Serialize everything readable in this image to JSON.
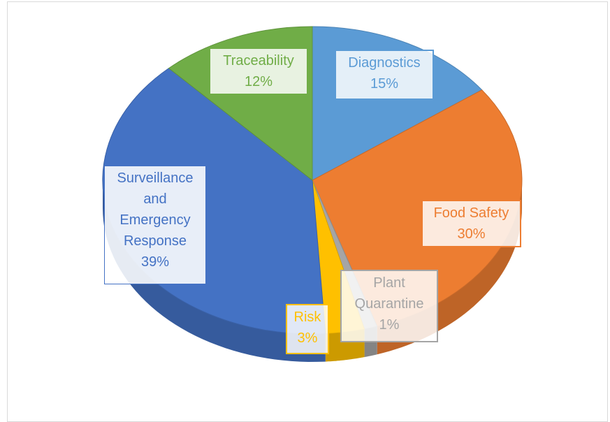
{
  "chart_data": {
    "type": "pie",
    "style": "3d",
    "slices": [
      {
        "label": "Diagnostics",
        "pct_text": "15%",
        "value": 15,
        "color": "#5b9bd5"
      },
      {
        "label": "Food Safety",
        "pct_text": "30%",
        "value": 30,
        "color": "#ed7d31"
      },
      {
        "label": "Plant Quarantine",
        "pct_text": "1%",
        "value": 1,
        "color": "#a5a5a5"
      },
      {
        "label": "Risk",
        "pct_text": "3%",
        "value": 3,
        "color": "#ffc000"
      },
      {
        "label": "Surveillance and Emergency Response",
        "pct_text": "39%",
        "value": 39,
        "color": "#4472c4"
      },
      {
        "label": "Traceability",
        "pct_text": "12%",
        "value": 12,
        "color": "#70ad47"
      }
    ],
    "labels": {
      "diagnostics": [
        "Diagnostics",
        "15%"
      ],
      "food_safety": [
        "Food Safety",
        "30%"
      ],
      "plant_quarantine": [
        "Plant",
        "Quarantine",
        "1%"
      ],
      "risk": [
        "Risk",
        "3%"
      ],
      "surveillance": [
        "Surveillance",
        "and",
        "Emergency",
        "Response",
        "39%"
      ],
      "traceability": [
        "Traceability",
        "12%"
      ]
    }
  }
}
